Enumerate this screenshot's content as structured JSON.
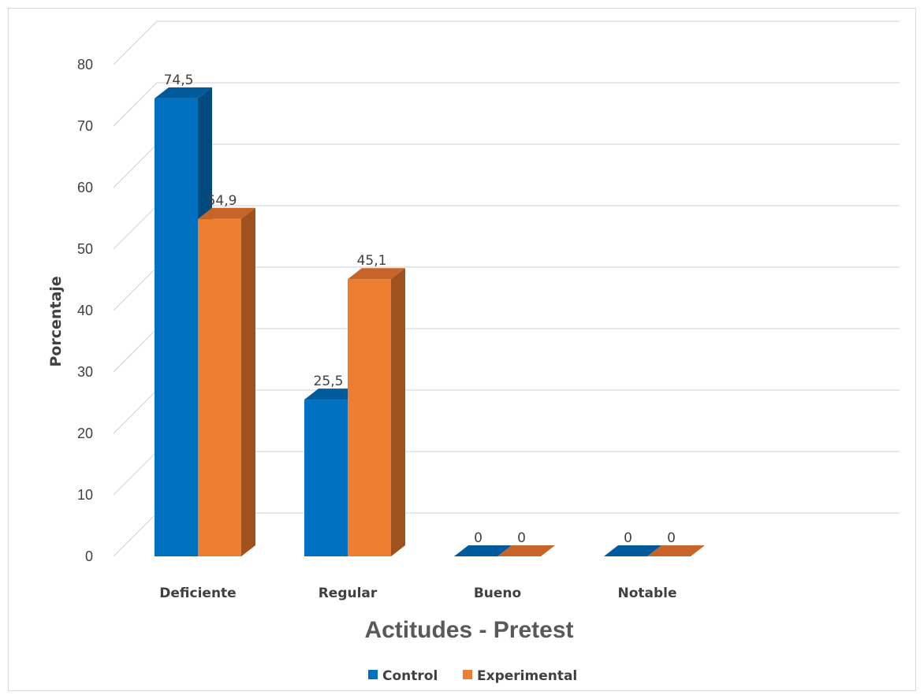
{
  "chart_data": {
    "type": "bar",
    "style": "3d-clustered-column",
    "title": "",
    "xlabel": "Actitudes - Pretest",
    "ylabel": "Porcentaje",
    "categories": [
      "Deficiente",
      "Regular",
      "Bueno",
      "Notable"
    ],
    "series": [
      {
        "name": "Control",
        "values": [
          74.5,
          25.5,
          0,
          0
        ],
        "labels": [
          "74,5",
          "25,5",
          "0",
          "0"
        ],
        "color": "#0070C0",
        "side_color": "#004A80",
        "top_color": "#005A9C"
      },
      {
        "name": "Experimental",
        "values": [
          54.9,
          45.1,
          0,
          0
        ],
        "labels": [
          "54,9",
          "45,1",
          "0",
          "0"
        ],
        "color": "#ED7D31",
        "side_color": "#A0521E",
        "top_color": "#C6642A"
      }
    ],
    "ylim": [
      0,
      80
    ],
    "yticks": [
      0,
      10,
      20,
      30,
      40,
      50,
      60,
      70,
      80
    ],
    "grid": true,
    "legend": "bottom-center",
    "gridline_color": "#d9d9d9"
  }
}
